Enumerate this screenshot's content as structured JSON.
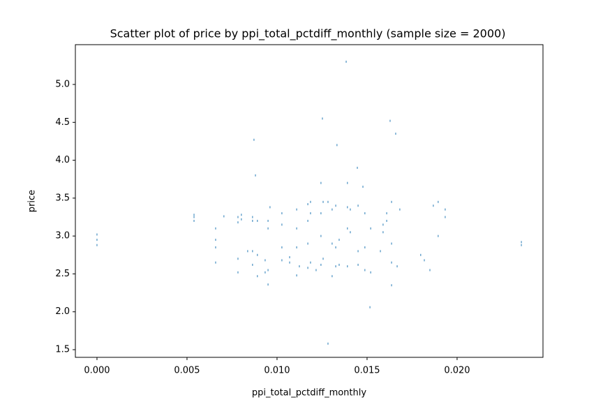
{
  "chart_data": {
    "type": "scatter",
    "title": "Scatter plot of price by ppi_total_pctdiff_monthly (sample size = 2000)",
    "x_label": "ppi_total_pctdiff_monthly",
    "y_label": "price",
    "color": "#1f77b4",
    "x": [
      0,
      0,
      0,
      0.00539,
      0.00539,
      0.00539,
      0.00659,
      0.00659,
      0.00659,
      0.00659,
      0.00705,
      0.00783,
      0.00783,
      0.00783,
      0.00783,
      0.00802,
      0.00802,
      0.00837,
      0.00864,
      0.00864,
      0.00864,
      0.00864,
      0.00872,
      0.0088,
      0.00891,
      0.00891,
      0.00891,
      0.00934,
      0.00934,
      0.0095,
      0.0095,
      0.0095,
      0.0095,
      0.00961,
      0.01027,
      0.01027,
      0.01027,
      0.01027,
      0.0107,
      0.0107,
      0.01109,
      0.01109,
      0.01109,
      0.01109,
      0.01124,
      0.01171,
      0.01171,
      0.01171,
      0.01171,
      0.01186,
      0.01186,
      0.01186,
      0.01217,
      0.01244,
      0.01244,
      0.01244,
      0.01244,
      0.01252,
      0.01256,
      0.01256,
      0.01283,
      0.01283,
      0.01306,
      0.01306,
      0.01306,
      0.01326,
      0.01326,
      0.01326,
      0.01333,
      0.01345,
      0.01345,
      0.01384,
      0.01391,
      0.01391,
      0.01391,
      0.01391,
      0.01407,
      0.01407,
      0.01446,
      0.0145,
      0.0145,
      0.0145,
      0.01477,
      0.01488,
      0.01488,
      0.01488,
      0.01516,
      0.0152,
      0.0152,
      0.01574,
      0.01589,
      0.01589,
      0.01609,
      0.01609,
      0.01628,
      0.01636,
      0.01636,
      0.01636,
      0.01636,
      0.01659,
      0.01667,
      0.01682,
      0.01798,
      0.01818,
      0.01849,
      0.01868,
      0.01895,
      0.01895,
      0.01934,
      0.01934,
      0.02357,
      0.02357
    ],
    "values": [
      2.88,
      2.95,
      3.02,
      3.2,
      3.25,
      3.28,
      2.65,
      2.85,
      2.95,
      3.1,
      3.26,
      2.52,
      2.7,
      3.18,
      3.25,
      3.22,
      3.28,
      2.8,
      2.62,
      2.8,
      3.2,
      3.25,
      4.27,
      3.8,
      2.47,
      2.75,
      3.2,
      2.52,
      2.68,
      2.36,
      2.55,
      3.1,
      3.2,
      3.38,
      2.68,
      2.85,
      3.15,
      3.3,
      2.65,
      2.72,
      2.48,
      2.85,
      3.1,
      3.35,
      2.6,
      2.58,
      2.9,
      3.2,
      3.42,
      2.65,
      3.3,
      3.45,
      2.55,
      2.62,
      3.0,
      3.3,
      3.7,
      4.55,
      2.7,
      3.45,
      1.58,
      3.45,
      2.47,
      2.9,
      3.35,
      2.6,
      2.85,
      3.4,
      4.2,
      2.62,
      2.95,
      5.3,
      2.6,
      3.1,
      3.38,
      3.7,
      3.05,
      3.35,
      3.9,
      2.62,
      2.8,
      3.4,
      3.65,
      2.55,
      2.85,
      3.3,
      2.06,
      2.52,
      3.1,
      2.8,
      3.05,
      3.15,
      3.2,
      3.3,
      4.52,
      2.35,
      2.65,
      2.9,
      3.45,
      4.35,
      2.6,
      3.35,
      2.75,
      2.68,
      2.55,
      3.4,
      3.0,
      3.45,
      3.25,
      3.35,
      2.88,
      2.92
    ],
    "xlim": [
      -0.0012,
      0.02477
    ],
    "ylim": [
      1.399,
      5.525
    ],
    "xticks": [
      {
        "value": 0,
        "label": "0.000"
      },
      {
        "value": 0.005,
        "label": "0.005"
      },
      {
        "value": 0.01,
        "label": "0.010"
      },
      {
        "value": 0.015,
        "label": "0.015"
      },
      {
        "value": 0.02,
        "label": "0.020"
      }
    ],
    "yticks": [
      {
        "value": 1.5,
        "label": "1.5"
      },
      {
        "value": 2,
        "label": "2.0"
      },
      {
        "value": 2.5,
        "label": "2.5"
      },
      {
        "value": 3,
        "label": "3.0"
      },
      {
        "value": 3.5,
        "label": "3.5"
      },
      {
        "value": 4,
        "label": "4.0"
      },
      {
        "value": 4.5,
        "label": "4.5"
      },
      {
        "value": 5,
        "label": "5.0"
      }
    ],
    "grid": false
  }
}
